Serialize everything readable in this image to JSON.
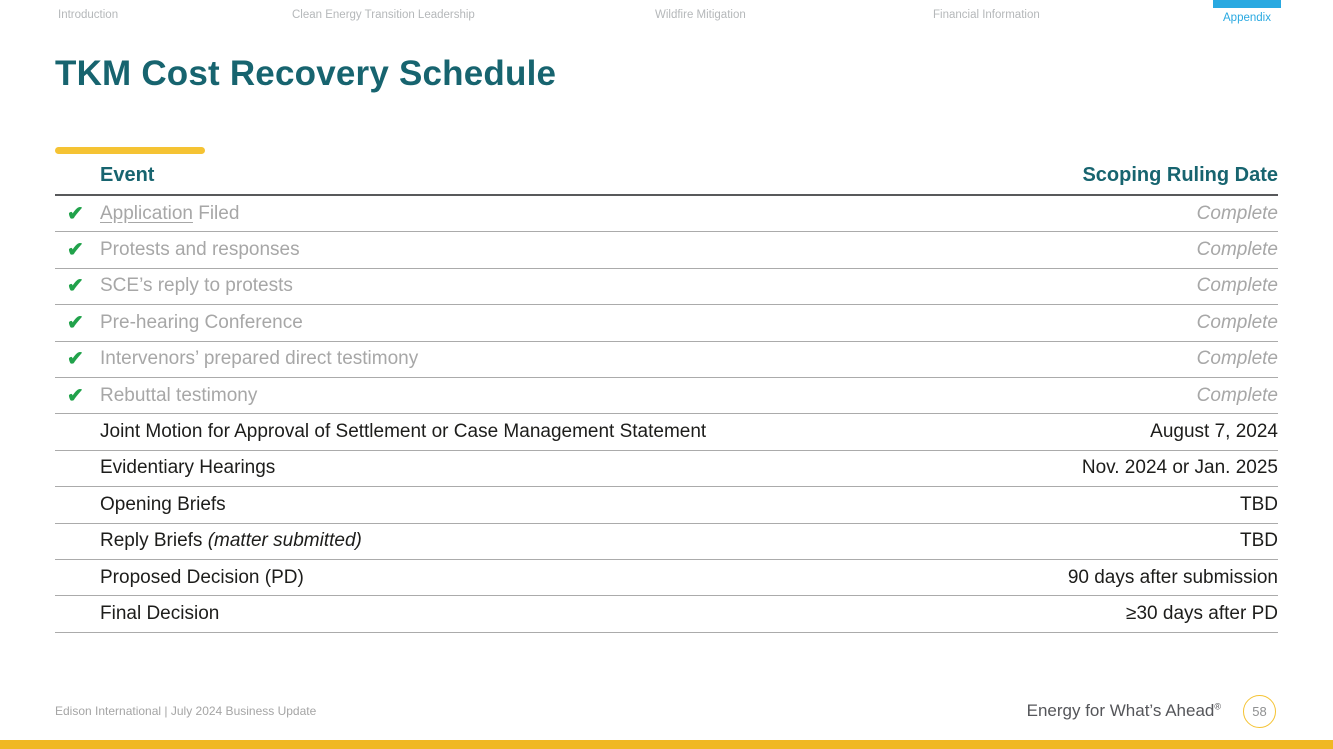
{
  "nav": {
    "items": [
      {
        "label": "Introduction",
        "active": false
      },
      {
        "label": "Clean Energy Transition Leadership",
        "active": false
      },
      {
        "label": "Wildfire Mitigation",
        "active": false
      },
      {
        "label": "Financial Information",
        "active": false
      },
      {
        "label": "Appendix",
        "active": true
      }
    ]
  },
  "title": "TKM Cost Recovery Schedule",
  "table": {
    "header_event": "Event",
    "header_date": "Scoping Ruling Date",
    "check_glyph": "✔",
    "rows": [
      {
        "complete": true,
        "link": "Application",
        "text": " Filed",
        "date": "Complete",
        "date_italic": true
      },
      {
        "complete": true,
        "text": "Protests and responses",
        "date": "Complete",
        "date_italic": true
      },
      {
        "complete": true,
        "text": "SCE’s reply to protests",
        "date": "Complete",
        "date_italic": true
      },
      {
        "complete": true,
        "text": "Pre-hearing Conference",
        "date": "Complete",
        "date_italic": true
      },
      {
        "complete": true,
        "text": "Intervenors’ prepared direct testimony",
        "date": "Complete",
        "date_italic": true
      },
      {
        "complete": true,
        "text": "Rebuttal testimony",
        "date": "Complete",
        "date_italic": true
      },
      {
        "complete": false,
        "text": "Joint Motion for Approval of Settlement or Case Management Statement",
        "date": "August 7, 2024",
        "date_italic": false
      },
      {
        "complete": false,
        "text": "Evidentiary Hearings",
        "date": "Nov. 2024 or Jan. 2025",
        "date_italic": false
      },
      {
        "complete": false,
        "text": "Opening Briefs",
        "date": "TBD",
        "date_italic": false
      },
      {
        "complete": false,
        "text": "Reply Briefs ",
        "italic": "(matter submitted)",
        "date": "TBD",
        "date_italic": false
      },
      {
        "complete": false,
        "text": "Proposed Decision (PD)",
        "date": "90 days after submission",
        "date_italic": false
      },
      {
        "complete": false,
        "text": "Final Decision",
        "date": "≥30 days after PD",
        "date_italic": false
      }
    ]
  },
  "footer": {
    "left_text": "Edison International | July 2024 Business Update",
    "tagline": "Energy for What’s Ahead",
    "tagline_reg": "®",
    "page_number": "58"
  },
  "colors": {
    "teal": "#17646f",
    "gold": "#f5c333",
    "gold_dark": "#f0b823",
    "cyan": "#29a9e1",
    "green": "#21a24b",
    "gray_text": "#a7a7a7",
    "nav_gray": "#b5b8ba",
    "dark_text": "#1d1d1b",
    "line_gray": "#ababab",
    "header_line": "#58595b",
    "footer_gray": "#a5a5a5",
    "footer_dark": "#55565a"
  }
}
